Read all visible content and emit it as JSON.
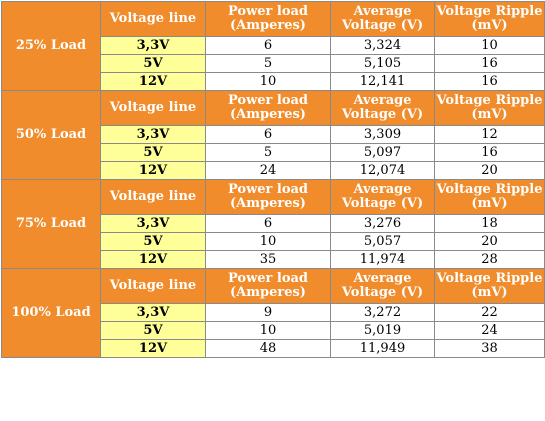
{
  "headers": {
    "voltage_line": "Voltage line",
    "power_load": "Power load (Amperes)",
    "avg_voltage": "Average Voltage (V)",
    "ripple": "Voltage Ripple (mV)"
  },
  "groups": [
    {
      "label": "25% Load",
      "rows": [
        {
          "line": "3,3V",
          "amps": "6",
          "volts": "3,324",
          "ripple": "10"
        },
        {
          "line": "5V",
          "amps": "5",
          "volts": "5,105",
          "ripple": "16"
        },
        {
          "line": "12V",
          "amps": "10",
          "volts": "12,141",
          "ripple": "16"
        }
      ]
    },
    {
      "label": "50% Load",
      "rows": [
        {
          "line": "3,3V",
          "amps": "6",
          "volts": "3,309",
          "ripple": "12"
        },
        {
          "line": "5V",
          "amps": "5",
          "volts": "5,097",
          "ripple": "16"
        },
        {
          "line": "12V",
          "amps": "24",
          "volts": "12,074",
          "ripple": "20"
        }
      ]
    },
    {
      "label": "75% Load",
      "rows": [
        {
          "line": "3,3V",
          "amps": "6",
          "volts": "3,276",
          "ripple": "18"
        },
        {
          "line": "5V",
          "amps": "10",
          "volts": "5,057",
          "ripple": "20"
        },
        {
          "line": "12V",
          "amps": "35",
          "volts": "11,974",
          "ripple": "28"
        }
      ]
    },
    {
      "label": "100% Load",
      "rows": [
        {
          "line": "3,3V",
          "amps": "9",
          "volts": "3,272",
          "ripple": "22"
        },
        {
          "line": "5V",
          "amps": "10",
          "volts": "5,019",
          "ripple": "24"
        },
        {
          "line": "12V",
          "amps": "48",
          "volts": "11,949",
          "ripple": "38"
        }
      ]
    }
  ]
}
